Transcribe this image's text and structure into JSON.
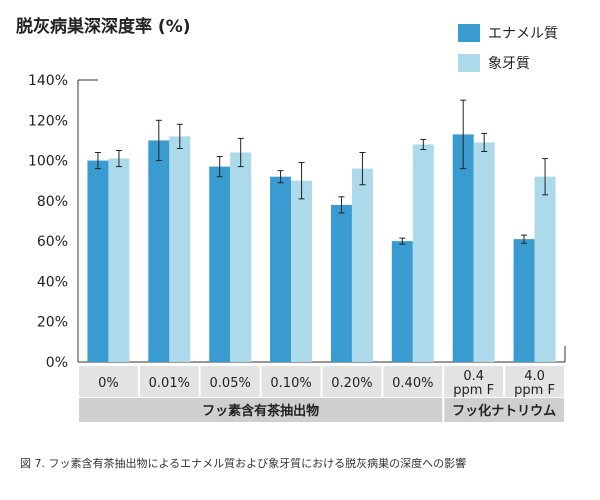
{
  "chart_data": {
    "type": "bar",
    "title": "脱灰病巣深深度率 (%)",
    "categories": [
      [
        "0%"
      ],
      [
        "0.01%"
      ],
      [
        "0.05%"
      ],
      [
        "0.10%"
      ],
      [
        "0.20%"
      ],
      [
        "0.40%"
      ],
      [
        "0.4",
        "ppm F"
      ],
      [
        "4.0",
        "ppm F"
      ]
    ],
    "series": [
      {
        "name": "エナメル質",
        "color": "#3a9bd0",
        "values": [
          100,
          110,
          97,
          92,
          78,
          60,
          113,
          61
        ],
        "errors": [
          4,
          10,
          5,
          3,
          4,
          1.5,
          17,
          2
        ]
      },
      {
        "name": "象牙質",
        "color": "#acdaea",
        "values": [
          101,
          112,
          104,
          90,
          96,
          108,
          109,
          92
        ],
        "errors": [
          4,
          6,
          7,
          9,
          8,
          2.5,
          4.5,
          9
        ]
      }
    ],
    "ylim": [
      0,
      140
    ],
    "yticks": [
      0,
      20,
      40,
      60,
      80,
      100,
      120,
      140
    ],
    "ytick_labels": [
      "0%",
      "20%",
      "40%",
      "60%",
      "80%",
      "100%",
      "120%",
      "140%"
    ],
    "groups": [
      {
        "label": "フッ素含有茶抽出物",
        "count": 6
      },
      {
        "label": "フッ化ナトリウム",
        "count": 2
      }
    ],
    "grid": false,
    "legend": "top-right"
  },
  "caption": "図 7. フッ素含有茶抽出物によるエナメル質および象牙質における脱灰病巣の深度への影響"
}
